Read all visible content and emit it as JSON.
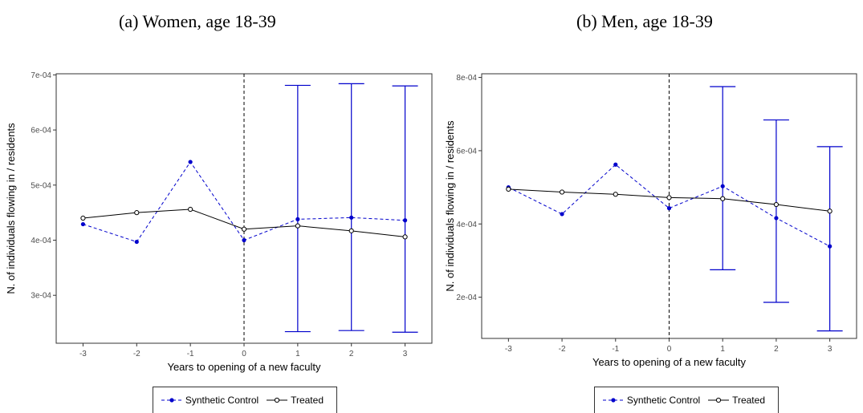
{
  "panels": {
    "a": {
      "title": "(a) Women, age 18-39"
    },
    "b": {
      "title": "(b) Men, age 18-39"
    }
  },
  "legend": {
    "synthetic": "Synthetic Control",
    "treated": "Treated"
  },
  "colors": {
    "synthetic": "#0000cc",
    "treated": "#000000",
    "ci": "#0000cc"
  },
  "chart_data": [
    {
      "type": "line",
      "title": "(a) Women, age 18-39",
      "xlabel": "Years to opening of a new faculty",
      "ylabel": "N. of individuals flowing in / residents",
      "x": [
        -3,
        -2,
        -1,
        0,
        1,
        2,
        3
      ],
      "xlim": [
        -3.5,
        3.5
      ],
      "ylim": [
        0.000213,
        0.000702
      ],
      "yticks": [
        0.0003,
        0.0004,
        0.0005,
        0.0006,
        0.0007
      ],
      "ytick_labels": [
        "3e-04",
        "4e-04",
        "5e-04",
        "6e-04",
        "7e-04"
      ],
      "xtick_labels": [
        "-3",
        "-2",
        "-1",
        "0",
        "1",
        "2",
        "3"
      ],
      "vline_x": 0,
      "series": [
        {
          "name": "Synthetic Control",
          "style": "dashed",
          "values": [
            0.000429,
            0.000397,
            0.000542,
            0.0004,
            0.000438,
            0.000441,
            0.000436
          ]
        },
        {
          "name": "Treated",
          "style": "solid",
          "values": [
            0.00044,
            0.00045,
            0.000456,
            0.00042,
            0.000426,
            0.000417,
            0.000406
          ]
        }
      ],
      "error_bars": [
        {
          "x": 1,
          "low": 0.000234,
          "high": 0.000681
        },
        {
          "x": 2,
          "low": 0.000236,
          "high": 0.000684
        },
        {
          "x": 3,
          "low": 0.000233,
          "high": 0.00068
        }
      ],
      "grid": false,
      "legend_position": "bottom"
    },
    {
      "type": "line",
      "title": "(b) Men, age 18-39",
      "xlabel": "Years to opening of a new faculty",
      "ylabel": "N. of individuals flowing in / residents",
      "x": [
        -3,
        -2,
        -1,
        0,
        1,
        2,
        3
      ],
      "xlim": [
        -3.5,
        3.5
      ],
      "ylim": [
        8.75e-05,
        0.00081
      ],
      "yticks": [
        0.0002,
        0.0004,
        0.0006,
        0.0008
      ],
      "ytick_labels": [
        "2e-04",
        "4e-04",
        "6e-04",
        "8e-04"
      ],
      "xtick_labels": [
        "-3",
        "-2",
        "-1",
        "0",
        "1",
        "2",
        "3"
      ],
      "vline_x": 0,
      "series": [
        {
          "name": "Synthetic Control",
          "style": "dashed",
          "values": [
            0.0005,
            0.000427,
            0.000562,
            0.000443,
            0.000503,
            0.000416,
            0.000339
          ]
        },
        {
          "name": "Treated",
          "style": "solid",
          "values": [
            0.000495,
            0.000487,
            0.000481,
            0.000472,
            0.000469,
            0.000453,
            0.000435
          ]
        }
      ],
      "error_bars": [
        {
          "x": 1,
          "low": 0.000275,
          "high": 0.000775
        },
        {
          "x": 2,
          "low": 0.000186,
          "high": 0.000684
        },
        {
          "x": 3,
          "low": 0.000108,
          "high": 0.000611
        }
      ],
      "grid": false,
      "legend_position": "bottom"
    }
  ]
}
